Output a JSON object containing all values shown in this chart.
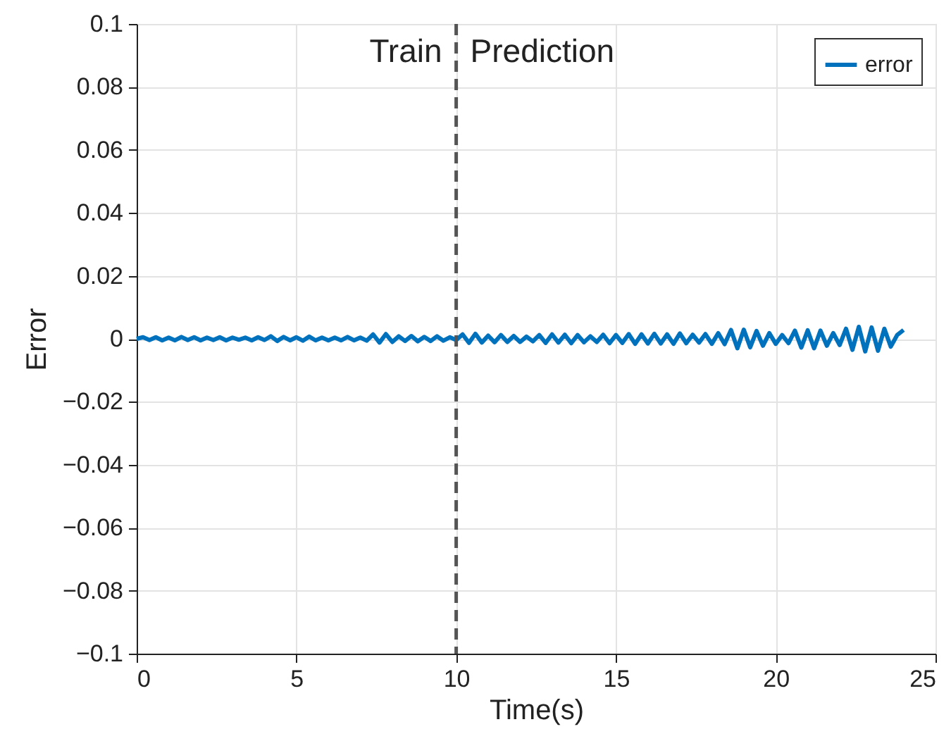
{
  "chart_data": {
    "type": "line",
    "xlabel": "Time(s)",
    "ylabel": "Error",
    "x": [
      0,
      0.2,
      0.4,
      0.6,
      0.8,
      1,
      1.2,
      1.4,
      1.6,
      1.8,
      2,
      2.2,
      2.4,
      2.6,
      2.8,
      3,
      3.2,
      3.4,
      3.6,
      3.8,
      4,
      4.2,
      4.4,
      4.6,
      4.8,
      5,
      5.2,
      5.4,
      5.6,
      5.8,
      6,
      6.2,
      6.4,
      6.6,
      6.8,
      7,
      7.2,
      7.4,
      7.6,
      7.8,
      8,
      8.2,
      8.4,
      8.6,
      8.8,
      9,
      9.2,
      9.4,
      9.6,
      9.8,
      10,
      10.2,
      10.4,
      10.6,
      10.8,
      11,
      11.2,
      11.4,
      11.6,
      11.8,
      12,
      12.2,
      12.4,
      12.6,
      12.8,
      13,
      13.2,
      13.4,
      13.6,
      13.8,
      14,
      14.2,
      14.4,
      14.6,
      14.8,
      15,
      15.2,
      15.4,
      15.6,
      15.8,
      16,
      16.2,
      16.4,
      16.6,
      16.8,
      17,
      17.2,
      17.4,
      17.6,
      17.8,
      18,
      18.2,
      18.4,
      18.6,
      18.8,
      19,
      19.2,
      19.4,
      19.6,
      19.8,
      20,
      20.2,
      20.4,
      20.6,
      20.8,
      21,
      21.2,
      21.4,
      21.6,
      21.8,
      22,
      22.2,
      22.4,
      22.6,
      22.8,
      23,
      23.2,
      23.4,
      23.6,
      23.8,
      24
    ],
    "series": [
      {
        "name": "error",
        "color": "#0072bd",
        "values": [
          0,
          0.0005,
          -0.0004,
          0.0005,
          -0.0005,
          0.0004,
          -0.0005,
          0.0006,
          -0.0004,
          0.0005,
          -0.0005,
          0.0004,
          -0.0004,
          0.0005,
          -0.0005,
          0.0004,
          -0.0003,
          0.0004,
          -0.0005,
          0.0005,
          -0.0004,
          0.0008,
          -0.0007,
          0.0006,
          -0.0005,
          0.0005,
          -0.0006,
          0.0007,
          -0.0005,
          0.0004,
          -0.0005,
          0.0004,
          -0.0005,
          0.0006,
          -0.0005,
          0.0004,
          -0.0006,
          0.0014,
          -0.0012,
          0.0015,
          -0.001,
          0.0008,
          -0.0007,
          0.0009,
          -0.0008,
          0.0006,
          -0.0007,
          0.0008,
          -0.0006,
          0.0005,
          -0.0004,
          0.0014,
          -0.0013,
          0.0016,
          -0.0012,
          0.001,
          -0.0011,
          0.0012,
          -0.001,
          0.0009,
          -0.001,
          0.0007,
          -0.0008,
          0.0012,
          -0.0013,
          0.0014,
          -0.0012,
          0.0013,
          -0.0014,
          0.0012,
          -0.0011,
          0.0008,
          -0.001,
          0.0013,
          -0.0014,
          0.0012,
          -0.0013,
          0.0015,
          -0.0016,
          0.0014,
          -0.0015,
          0.0016,
          -0.0015,
          0.0014,
          -0.0016,
          0.0017,
          -0.0014,
          0.0013,
          -0.0012,
          0.0015,
          -0.0016,
          0.0018,
          -0.0017,
          0.0028,
          -0.003,
          0.0029,
          -0.0027,
          0.0025,
          -0.0022,
          0.0018,
          -0.0016,
          0.0012,
          -0.0014,
          0.0026,
          -0.0028,
          0.0027,
          -0.003,
          0.0026,
          -0.0022,
          0.0018,
          -0.002,
          0.0032,
          -0.0035,
          0.0038,
          -0.004,
          0.0036,
          -0.0038,
          0.0032,
          -0.0025,
          0.0012,
          0.0028
        ]
      }
    ],
    "xlim": [
      0,
      25
    ],
    "xticks": [
      0,
      5,
      10,
      15,
      20,
      25
    ],
    "ylim": [
      -0.1,
      0.1
    ],
    "yticks": [
      -0.1,
      -0.08,
      -0.06,
      -0.04,
      -0.02,
      0,
      0.02,
      0.04,
      0.06,
      0.08,
      0.1
    ],
    "ref_lines": [
      {
        "axis": "x",
        "value": 10,
        "color": "#555555",
        "line_style": "dashed"
      }
    ],
    "annotations": [
      "Train",
      "Prediction"
    ],
    "grid": true,
    "legend": "top right",
    "line_style": "solid",
    "marker": "none"
  }
}
